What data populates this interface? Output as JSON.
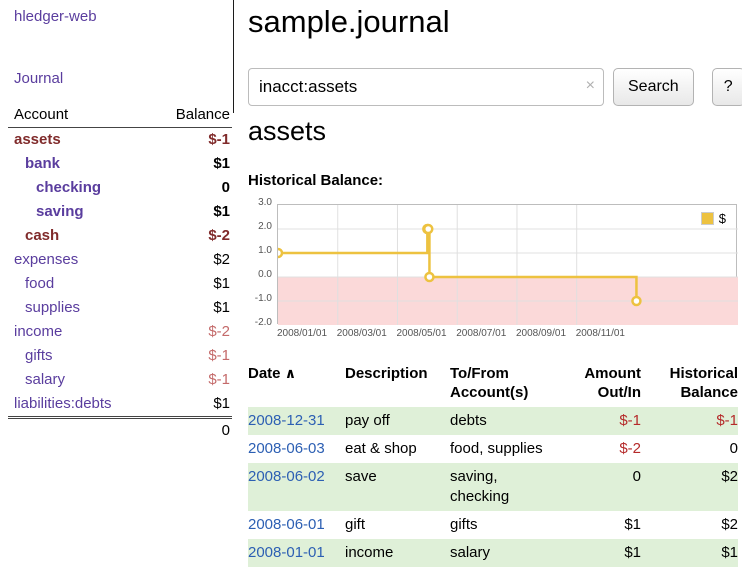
{
  "sidebar": {
    "app_title": "hledger-web",
    "journal_link": "Journal",
    "accounts": {
      "col_account": "Account",
      "col_balance": "Balance",
      "rows": [
        {
          "name": "assets",
          "balance": "$-1",
          "indent": 0,
          "bold": true,
          "name_style": "maroon",
          "balance_style": "maroon"
        },
        {
          "name": "bank",
          "balance": "$1",
          "indent": 1,
          "bold": true,
          "name_style": "purple",
          "balance_style": "black"
        },
        {
          "name": "checking",
          "balance": "0",
          "indent": 2,
          "bold": true,
          "name_style": "purple",
          "balance_style": "black"
        },
        {
          "name": "saving",
          "balance": "$1",
          "indent": 2,
          "bold": true,
          "name_style": "purple",
          "balance_style": "black"
        },
        {
          "name": "cash",
          "balance": "$-2",
          "indent": 1,
          "bold": true,
          "name_style": "maroon",
          "balance_style": "maroon"
        },
        {
          "name": "expenses",
          "balance": "$2",
          "indent": 0,
          "bold": false,
          "name_style": "purple",
          "balance_style": "black"
        },
        {
          "name": "food",
          "balance": "$1",
          "indent": 1,
          "bold": false,
          "name_style": "purple",
          "balance_style": "black"
        },
        {
          "name": "supplies",
          "balance": "$1",
          "indent": 1,
          "bold": false,
          "name_style": "purple",
          "balance_style": "black"
        },
        {
          "name": "income",
          "balance": "$-2",
          "indent": 0,
          "bold": false,
          "name_style": "purple",
          "balance_style": "pink"
        },
        {
          "name": "gifts",
          "balance": "$-1",
          "indent": 1,
          "bold": false,
          "name_style": "purple",
          "balance_style": "pink"
        },
        {
          "name": "salary",
          "balance": "$-1",
          "indent": 1,
          "bold": false,
          "name_style": "purple",
          "balance_style": "pink"
        },
        {
          "name": "liabilities:debts",
          "balance": "$1",
          "indent": 0,
          "bold": false,
          "name_style": "purple",
          "balance_style": "black"
        }
      ],
      "total": "0"
    }
  },
  "main": {
    "title": "sample.journal",
    "search": {
      "value": "inacct:assets",
      "clear_icon": "×",
      "search_button": "Search",
      "help_button": "?"
    },
    "account_heading": "assets",
    "chart_label": "Historical Balance:",
    "register": {
      "headers": {
        "date": "Date",
        "sort_indicator": "∧",
        "description": "Description",
        "accounts_line1": "To/From",
        "accounts_line2": "Account(s)",
        "amount_line1": "Amount",
        "amount_line2": "Out/In",
        "balance_line1": "Historical",
        "balance_line2": "Balance"
      },
      "rows": [
        {
          "date": "2008-12-31",
          "description": "pay off",
          "accounts": "debts",
          "amount": "$-1",
          "amount_negative": true,
          "balance": "$-1",
          "balance_negative": true,
          "striped": true
        },
        {
          "date": "2008-06-03",
          "description": "eat & shop",
          "accounts": "food, supplies",
          "amount": "$-2",
          "amount_negative": true,
          "balance": "0",
          "balance_negative": false,
          "striped": false
        },
        {
          "date": "2008-06-02",
          "description": "save",
          "accounts": "saving, checking",
          "amount": "0",
          "amount_negative": false,
          "balance": "$2",
          "balance_negative": false,
          "striped": true
        },
        {
          "date": "2008-06-01",
          "description": "gift",
          "accounts": "gifts",
          "amount": "$1",
          "amount_negative": false,
          "balance": "$2",
          "balance_negative": false,
          "striped": false
        },
        {
          "date": "2008-01-01",
          "description": "income",
          "accounts": "salary",
          "amount": "$1",
          "amount_negative": false,
          "balance": "$1",
          "balance_negative": false,
          "striped": true
        }
      ]
    }
  },
  "chart_data": {
    "type": "line",
    "title": "Historical Balance:",
    "steps": true,
    "legend": "$",
    "legend_position": "top-right",
    "series_color": "#edc240",
    "negative_region_color": "#fbd9d9",
    "ylim": [
      -2.0,
      3.0
    ],
    "yticks": [
      "3.0",
      "2.0",
      "1.0",
      "0.0",
      "-1.0",
      "-2.0"
    ],
    "ytick_values": [
      3,
      2,
      1,
      0,
      -1,
      -2
    ],
    "xticks": [
      "2008/01/01",
      "2008/03/01",
      "2008/05/01",
      "2008/07/01",
      "2008/09/01",
      "2008/11/01"
    ],
    "xtick_months": [
      0,
      2,
      4,
      6,
      8,
      10
    ],
    "xlim_months": [
      0,
      15.4
    ],
    "points": [
      {
        "date": "2008-01-01",
        "month": 0,
        "value": 1
      },
      {
        "date": "2008-06-01",
        "month": 5,
        "value": 2
      },
      {
        "date": "2008-06-02",
        "month": 5.03,
        "value": 2
      },
      {
        "date": "2008-06-03",
        "month": 5.07,
        "value": 0
      },
      {
        "date": "2008-12-31",
        "month": 12,
        "value": -1
      }
    ]
  },
  "colors": {
    "purple_link": "#5a3d9e",
    "maroon_negative": "#802b2b",
    "pink_negative": "#c46a6a",
    "table_negative": "#b52a2a",
    "date_link_blue": "#2c5fb3",
    "row_stripe_green": "#dff0d8",
    "chart_line_gold": "#edc240"
  }
}
